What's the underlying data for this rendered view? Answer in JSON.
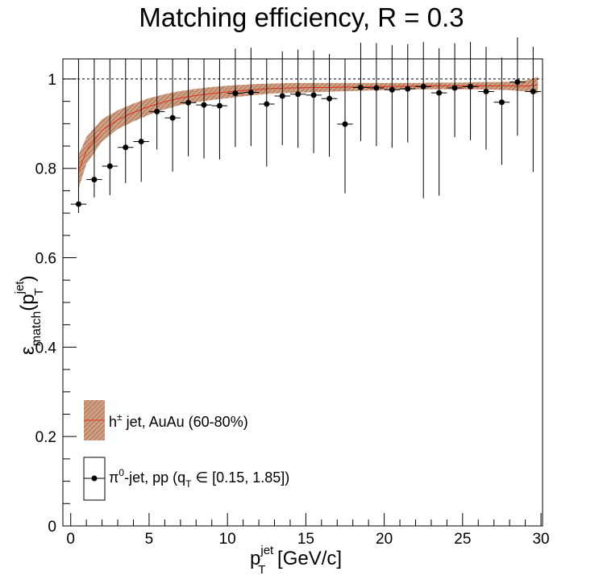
{
  "chart_data": {
    "type": "scatter",
    "title": "Matching efficiency, R = 0.3",
    "xlabel": {
      "main": "p",
      "sub": "T",
      "sup": "jet",
      "unit": " [GeV/c]"
    },
    "ylabel": {
      "main": "ε",
      "sub": "match",
      "paren_open": "(p",
      "sub2": "T",
      "sup2": "jet",
      "paren_close": ")"
    },
    "xlim": [
      -0.5,
      30.1
    ],
    "ylim": [
      0,
      1.045
    ],
    "x_ticks": [
      0,
      5,
      10,
      15,
      20,
      25,
      30
    ],
    "x_tick_labels": [
      "0",
      "5",
      "10",
      "15",
      "20",
      "25",
      "30"
    ],
    "y_ticks": [
      0,
      0.2,
      0.4,
      0.6,
      0.8,
      1
    ],
    "y_tick_labels": [
      "0",
      "0.2",
      "0.4",
      "0.6",
      "0.8",
      "1"
    ],
    "reference_line": 1,
    "grid": false,
    "legend_position": "bottom-left",
    "colors": {
      "band_fill": "#c89878",
      "band_hatch": "#b22222",
      "points": "#000000"
    },
    "series": [
      {
        "name": "π⁰-jet, pp",
        "legend": {
          "pre": "π",
          "sup": "0",
          "mid": "-jet, pp (q",
          "sub": "T",
          "post": " ∈ [0.15, 1.85])"
        },
        "kind": "points_with_errors",
        "x": [
          0.5,
          1.5,
          2.5,
          3.5,
          4.5,
          5.5,
          6.5,
          7.5,
          8.5,
          9.5,
          10.5,
          11.5,
          12.5,
          13.5,
          14.5,
          15.5,
          16.5,
          17.5,
          18.5,
          19.5,
          20.5,
          21.5,
          22.5,
          23.5,
          24.5,
          25.5,
          26.5,
          27.5,
          28.5,
          29.5
        ],
        "y": [
          0.72,
          0.775,
          0.805,
          0.847,
          0.86,
          0.927,
          0.913,
          0.947,
          0.942,
          0.94,
          0.968,
          0.97,
          0.944,
          0.962,
          0.966,
          0.964,
          0.956,
          0.899,
          0.981,
          0.98,
          0.976,
          0.978,
          0.983,
          0.969,
          0.98,
          0.983,
          0.972,
          0.948,
          0.993,
          0.972
        ],
        "y_err_low": [
          0.02,
          0.04,
          0.065,
          0.08,
          0.09,
          0.085,
          0.12,
          0.12,
          0.12,
          0.12,
          0.12,
          0.12,
          0.14,
          0.11,
          0.12,
          0.13,
          0.13,
          0.155,
          0.12,
          0.13,
          0.13,
          0.12,
          0.25,
          0.23,
          0.11,
          0.12,
          0.13,
          0.14,
          0.12,
          0.18
        ],
        "y_err_high": [
          0.02,
          0.04,
          0.065,
          0.08,
          0.09,
          0.085,
          0.1,
          0.1,
          0.1,
          0.1,
          0.1,
          0.1,
          0.1,
          0.1,
          0.1,
          0.1,
          0.1,
          0.1,
          0.1,
          0.1,
          0.1,
          0.1,
          0.1,
          0.1,
          0.1,
          0.1,
          0.1,
          0.1,
          0.1,
          0.1
        ],
        "x_halfwidth": 0.5
      },
      {
        "name": "h± jet, AuAu (60-80%)",
        "legend": {
          "pre": "h",
          "sup": "±",
          "post": " jet, AuAu (60-80%)"
        },
        "kind": "band",
        "x": [
          0.5,
          1,
          2,
          3,
          4,
          5,
          6,
          7,
          8,
          9,
          10,
          11,
          12,
          13,
          14,
          15,
          16,
          17,
          18,
          19,
          20,
          21,
          22,
          23,
          24,
          25,
          26,
          27,
          28,
          29,
          29.8
        ],
        "low": [
          0.755,
          0.81,
          0.86,
          0.888,
          0.905,
          0.92,
          0.932,
          0.942,
          0.948,
          0.953,
          0.957,
          0.961,
          0.965,
          0.968,
          0.969,
          0.97,
          0.971,
          0.972,
          0.973,
          0.974,
          0.975,
          0.976,
          0.977,
          0.977,
          0.977,
          0.977,
          0.977,
          0.976,
          0.975,
          0.972,
          0.968
        ],
        "high": [
          0.83,
          0.87,
          0.91,
          0.93,
          0.945,
          0.957,
          0.966,
          0.973,
          0.978,
          0.982,
          0.985,
          0.987,
          0.989,
          0.99,
          0.991,
          0.991,
          0.991,
          0.991,
          0.991,
          0.991,
          0.991,
          0.991,
          0.991,
          0.992,
          0.992,
          0.992,
          0.993,
          0.993,
          0.994,
          0.996,
          1.005
        ]
      }
    ]
  }
}
